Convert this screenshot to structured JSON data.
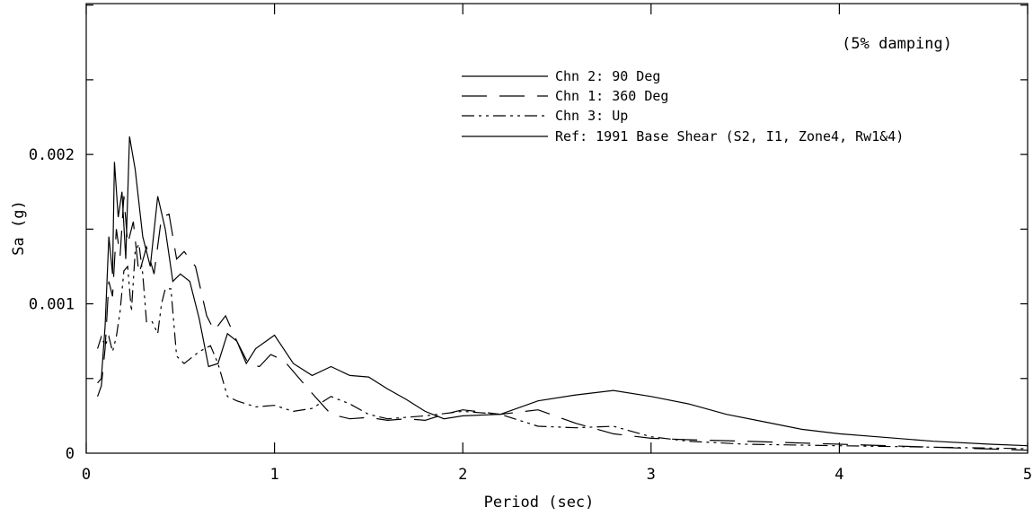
{
  "chart_data": {
    "type": "line",
    "title": "",
    "annotation": "(5% damping)",
    "xlabel": "Period (sec)",
    "ylabel": "Sa (g)",
    "xlim": [
      0,
      5
    ],
    "ylim": [
      0,
      0.002
    ],
    "x_ticks": [
      0,
      1,
      2,
      3,
      4,
      5
    ],
    "x_tick_labels": [
      "0",
      "1",
      "2",
      "3",
      "4",
      "5"
    ],
    "y_ticks": [
      0,
      0.001,
      0.002
    ],
    "y_tick_labels": [
      "0",
      "0.001",
      "0.002"
    ],
    "y_max_plot": 0.00301,
    "grid": false,
    "legend_position": "top-right",
    "series": [
      {
        "name": "Chn 2: 90 Deg",
        "style": "solid",
        "points": [
          [
            0.06,
            0.00047
          ],
          [
            0.08,
            0.0005
          ],
          [
            0.1,
            0.00085
          ],
          [
            0.12,
            0.00145
          ],
          [
            0.14,
            0.0012
          ],
          [
            0.15,
            0.00195
          ],
          [
            0.17,
            0.00158
          ],
          [
            0.19,
            0.00175
          ],
          [
            0.21,
            0.0013
          ],
          [
            0.23,
            0.00212
          ],
          [
            0.26,
            0.0019
          ],
          [
            0.3,
            0.00145
          ],
          [
            0.34,
            0.00125
          ],
          [
            0.38,
            0.00172
          ],
          [
            0.42,
            0.0015
          ],
          [
            0.46,
            0.00115
          ],
          [
            0.5,
            0.0012
          ],
          [
            0.55,
            0.00115
          ],
          [
            0.6,
            0.0009
          ],
          [
            0.65,
            0.00058
          ],
          [
            0.7,
            0.0006
          ],
          [
            0.75,
            0.0008
          ],
          [
            0.8,
            0.00075
          ],
          [
            0.85,
            0.0006
          ],
          [
            0.9,
            0.0007
          ],
          [
            1.0,
            0.00079
          ],
          [
            1.1,
            0.0006
          ],
          [
            1.2,
            0.00052
          ],
          [
            1.3,
            0.00058
          ],
          [
            1.4,
            0.00052
          ],
          [
            1.5,
            0.00051
          ],
          [
            1.6,
            0.00043
          ],
          [
            1.7,
            0.00036
          ],
          [
            1.8,
            0.00028
          ],
          [
            1.9,
            0.00023
          ],
          [
            2.0,
            0.00025
          ],
          [
            2.2,
            0.00026
          ],
          [
            2.4,
            0.00035
          ],
          [
            2.6,
            0.00039
          ],
          [
            2.8,
            0.00042
          ],
          [
            3.0,
            0.00038
          ],
          [
            3.2,
            0.00033
          ],
          [
            3.4,
            0.00026
          ],
          [
            3.6,
            0.00021
          ],
          [
            3.8,
            0.00016
          ],
          [
            4.0,
            0.00013
          ],
          [
            4.2,
            0.00011
          ],
          [
            4.5,
            8e-05
          ],
          [
            4.8,
            6e-05
          ],
          [
            5.0,
            5e-05
          ]
        ]
      },
      {
        "name": "Chn 1: 360 Deg",
        "style": "dashed",
        "points": [
          [
            0.06,
            0.00038
          ],
          [
            0.08,
            0.00045
          ],
          [
            0.1,
            0.0007
          ],
          [
            0.12,
            0.00115
          ],
          [
            0.14,
            0.00105
          ],
          [
            0.16,
            0.0015
          ],
          [
            0.18,
            0.00132
          ],
          [
            0.2,
            0.00172
          ],
          [
            0.22,
            0.0014
          ],
          [
            0.25,
            0.00155
          ],
          [
            0.28,
            0.0012
          ],
          [
            0.32,
            0.00138
          ],
          [
            0.36,
            0.0012
          ],
          [
            0.4,
            0.00158
          ],
          [
            0.44,
            0.0016
          ],
          [
            0.48,
            0.0013
          ],
          [
            0.52,
            0.00135
          ],
          [
            0.58,
            0.00125
          ],
          [
            0.64,
            0.00092
          ],
          [
            0.68,
            0.00082
          ],
          [
            0.74,
            0.00092
          ],
          [
            0.8,
            0.00075
          ],
          [
            0.86,
            0.0006
          ],
          [
            0.92,
            0.00058
          ],
          [
            0.98,
            0.00066
          ],
          [
            1.05,
            0.00062
          ],
          [
            1.2,
            0.0004
          ],
          [
            1.3,
            0.00026
          ],
          [
            1.4,
            0.00023
          ],
          [
            1.5,
            0.00024
          ],
          [
            1.6,
            0.00022
          ],
          [
            1.7,
            0.00023
          ],
          [
            1.8,
            0.00022
          ],
          [
            1.9,
            0.00026
          ],
          [
            2.0,
            0.00029
          ],
          [
            2.2,
            0.00026
          ],
          [
            2.4,
            0.00029
          ],
          [
            2.6,
            0.0002
          ],
          [
            2.8,
            0.00013
          ],
          [
            3.0,
            0.0001
          ],
          [
            3.2,
            9e-05
          ],
          [
            3.5,
            8e-05
          ],
          [
            4.0,
            6e-05
          ],
          [
            4.5,
            4e-05
          ],
          [
            5.0,
            2e-05
          ]
        ]
      },
      {
        "name": "Chn 3: Up",
        "style": "dash-dot",
        "points": [
          [
            0.06,
            0.0007
          ],
          [
            0.08,
            0.00078
          ],
          [
            0.1,
            0.00072
          ],
          [
            0.12,
            0.00078
          ],
          [
            0.14,
            0.00068
          ],
          [
            0.16,
            0.00078
          ],
          [
            0.18,
            0.00095
          ],
          [
            0.2,
            0.00122
          ],
          [
            0.22,
            0.00125
          ],
          [
            0.24,
            0.00095
          ],
          [
            0.26,
            0.00135
          ],
          [
            0.28,
            0.0014
          ],
          [
            0.3,
            0.0012
          ],
          [
            0.32,
            0.00088
          ],
          [
            0.35,
            0.00088
          ],
          [
            0.38,
            0.0008
          ],
          [
            0.4,
            0.001
          ],
          [
            0.42,
            0.0011
          ],
          [
            0.45,
            0.0011
          ],
          [
            0.48,
            0.00065
          ],
          [
            0.52,
            0.0006
          ],
          [
            0.6,
            0.00068
          ],
          [
            0.66,
            0.00072
          ],
          [
            0.7,
            0.0006
          ],
          [
            0.75,
            0.00038
          ],
          [
            0.8,
            0.00035
          ],
          [
            0.9,
            0.00031
          ],
          [
            1.0,
            0.00032
          ],
          [
            1.1,
            0.00028
          ],
          [
            1.2,
            0.0003
          ],
          [
            1.3,
            0.00038
          ],
          [
            1.4,
            0.00033
          ],
          [
            1.5,
            0.00026
          ],
          [
            1.6,
            0.00023
          ],
          [
            1.8,
            0.00025
          ],
          [
            2.0,
            0.00028
          ],
          [
            2.2,
            0.00026
          ],
          [
            2.4,
            0.00018
          ],
          [
            2.6,
            0.00017
          ],
          [
            2.8,
            0.00018
          ],
          [
            3.0,
            0.00011
          ],
          [
            3.2,
            8e-05
          ],
          [
            3.5,
            6e-05
          ],
          [
            4.0,
            5e-05
          ],
          [
            4.5,
            4e-05
          ],
          [
            5.0,
            3e-05
          ]
        ]
      },
      {
        "name": "Ref: 1991 Base Shear (S2, I1, Zone4, Rw1&4)",
        "style": "solid",
        "points": []
      }
    ]
  }
}
